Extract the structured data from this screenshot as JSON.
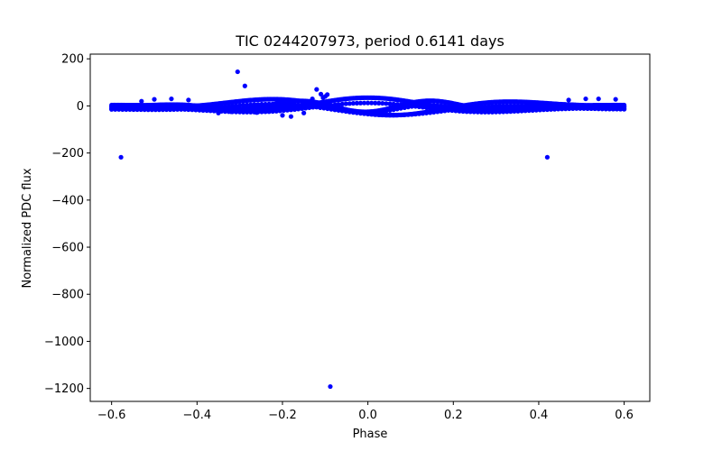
{
  "chart_data": {
    "type": "scatter",
    "title": "TIC 0244207973, period 0.6141 days",
    "xlabel": "Phase",
    "ylabel": "Normalized PDC flux",
    "xlim": [
      -0.65,
      0.66
    ],
    "ylim": [
      -1255,
      220
    ],
    "xticks": [
      {
        "value": -0.6,
        "label": "−0.6"
      },
      {
        "value": -0.4,
        "label": "−0.4"
      },
      {
        "value": -0.2,
        "label": "−0.2"
      },
      {
        "value": 0.0,
        "label": "0.0"
      },
      {
        "value": 0.2,
        "label": "0.2"
      },
      {
        "value": 0.4,
        "label": "0.4"
      },
      {
        "value": 0.6,
        "label": "0.6"
      }
    ],
    "yticks": [
      {
        "value": 200,
        "label": "200"
      },
      {
        "value": 0,
        "label": "0"
      },
      {
        "value": -200,
        "label": "−200"
      },
      {
        "value": -400,
        "label": "−400"
      },
      {
        "value": -600,
        "label": "−600"
      },
      {
        "value": -800,
        "label": "−800"
      },
      {
        "value": -1000,
        "label": "−1000"
      },
      {
        "value": -1200,
        "label": "−1200"
      }
    ],
    "grid": false,
    "marker_color": "#0000ff",
    "series": [
      {
        "name": "",
        "trend_band": {
          "x_range": [
            -0.6,
            0.6
          ],
          "curves": [
            {
              "amplitude": 40,
              "phase_shift": -0.25,
              "cycles_per_unit": 1.6
            },
            {
              "amplitude": 35,
              "phase_shift": 0.0,
              "cycles_per_unit": 1.6
            },
            {
              "amplitude": 25,
              "phase_shift": 0.15,
              "cycles_per_unit": 3.2
            }
          ]
        },
        "outliers": [
          {
            "x": -0.305,
            "y": 145
          },
          {
            "x": -0.288,
            "y": 85
          },
          {
            "x": -0.578,
            "y": -218
          },
          {
            "x": 0.42,
            "y": -218
          },
          {
            "x": -0.088,
            "y": -1192
          },
          {
            "x": -0.12,
            "y": 70
          },
          {
            "x": -0.11,
            "y": 50
          },
          {
            "x": -0.1,
            "y": 40
          },
          {
            "x": -0.095,
            "y": 48
          },
          {
            "x": -0.105,
            "y": 35
          },
          {
            "x": -0.13,
            "y": 30
          },
          {
            "x": -0.35,
            "y": -30
          },
          {
            "x": -0.32,
            "y": -25
          },
          {
            "x": -0.26,
            "y": -28
          },
          {
            "x": -0.2,
            "y": -40
          },
          {
            "x": -0.18,
            "y": -45
          },
          {
            "x": -0.15,
            "y": -30
          },
          {
            "x": -0.5,
            "y": 28
          },
          {
            "x": -0.46,
            "y": 30
          },
          {
            "x": -0.42,
            "y": 25
          },
          {
            "x": -0.53,
            "y": 20
          },
          {
            "x": 0.47,
            "y": 25
          },
          {
            "x": 0.51,
            "y": 30
          },
          {
            "x": 0.54,
            "y": 30
          },
          {
            "x": 0.58,
            "y": 28
          }
        ]
      }
    ]
  }
}
